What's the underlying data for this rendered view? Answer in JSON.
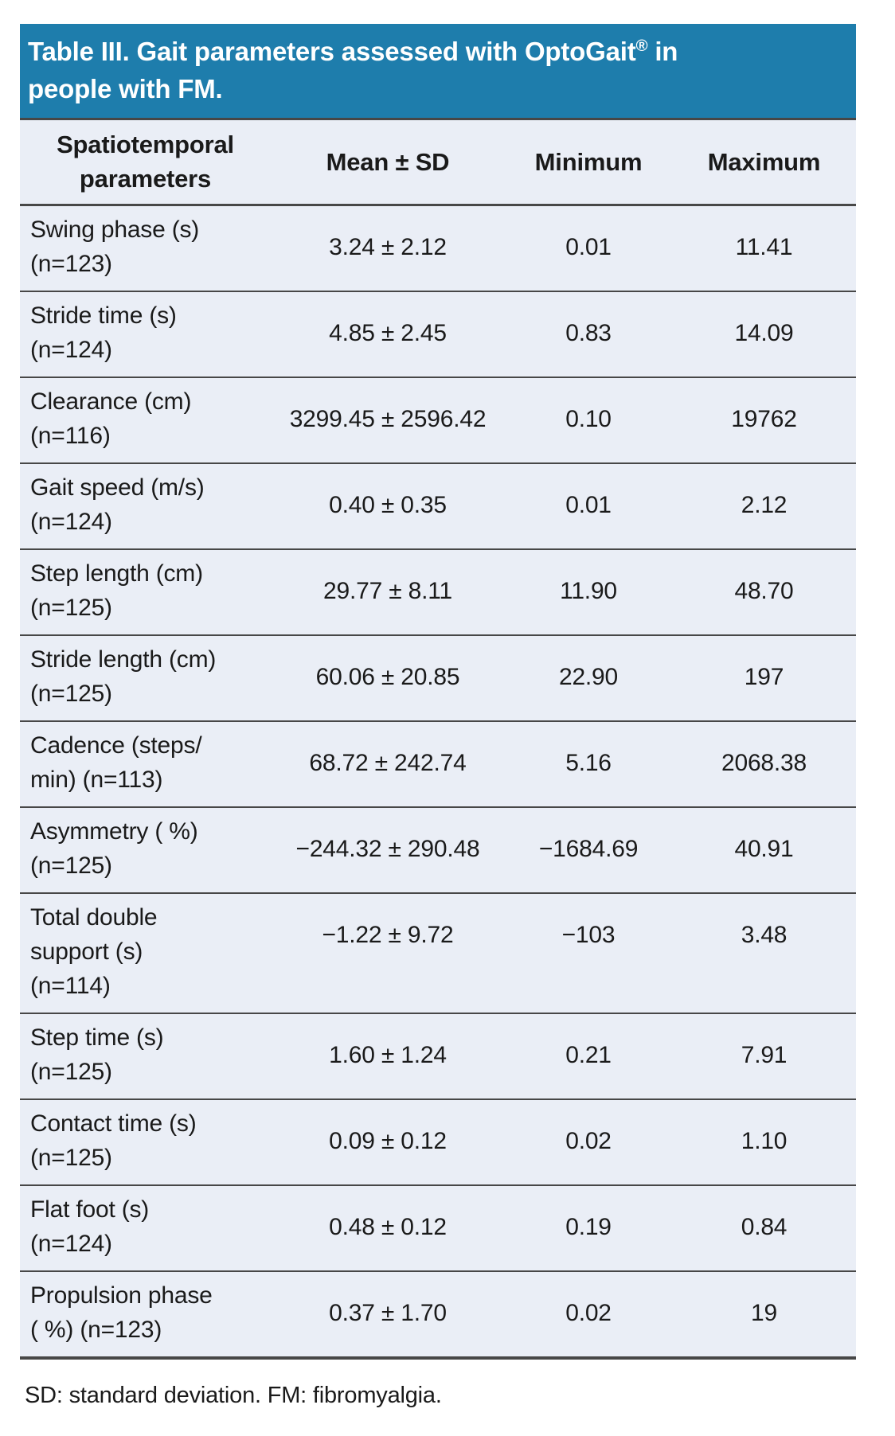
{
  "title": {
    "prefix": "Table III. Gait parameters assessed with OptoGait",
    "registered_mark": "®",
    "suffix": " in",
    "line2": "people with FM."
  },
  "table": {
    "headers": [
      "Spatiotemporal\nparameters",
      "Mean ± SD",
      "Minimum",
      "Maximum"
    ],
    "rows": [
      {
        "parameter": "Swing phase (s)\n(n=123)",
        "mean_sd": "3.24 ± 2.12",
        "minimum": "0.01",
        "maximum": "11.41"
      },
      {
        "parameter": "Stride time (s)\n(n=124)",
        "mean_sd": "4.85 ± 2.45",
        "minimum": "0.83",
        "maximum": "14.09"
      },
      {
        "parameter": "Clearance (cm)\n(n=116)",
        "mean_sd": "3299.45 ± 2596.42",
        "minimum": "0.10",
        "maximum": "19762"
      },
      {
        "parameter": "Gait speed (m/s)\n(n=124)",
        "mean_sd": "0.40 ± 0.35",
        "minimum": "0.01",
        "maximum": "2.12"
      },
      {
        "parameter": "Step length (cm)\n(n=125)",
        "mean_sd": "29.77 ± 8.11",
        "minimum": "11.90",
        "maximum": "48.70"
      },
      {
        "parameter": "Stride length (cm)\n(n=125)",
        "mean_sd": "60.06 ± 20.85",
        "minimum": "22.90",
        "maximum": "197"
      },
      {
        "parameter": "Cadence (steps/\nmin) (n=113)",
        "mean_sd": "68.72 ± 242.74",
        "minimum": "5.16",
        "maximum": "2068.38"
      },
      {
        "parameter": "Asymmetry ( %)\n(n=125)",
        "mean_sd": "−244.32 ± 290.48",
        "minimum": "−1684.69",
        "maximum": "40.91"
      },
      {
        "parameter": "Total double\nsupport (s)\n(n=114)",
        "mean_sd": "−1.22 ± 9.72",
        "minimum": "−103",
        "maximum": "3.48"
      },
      {
        "parameter": "Step time (s)\n(n=125)",
        "mean_sd": "1.60 ± 1.24",
        "minimum": "0.21",
        "maximum": "7.91"
      },
      {
        "parameter": "Contact time (s)\n(n=125)",
        "mean_sd": "0.09 ± 0.12",
        "minimum": "0.02",
        "maximum": "1.10"
      },
      {
        "parameter": "Flat foot (s)\n(n=124)",
        "mean_sd": "0.48 ± 0.12",
        "minimum": "0.19",
        "maximum": "0.84"
      },
      {
        "parameter": "Propulsion phase\n( %) (n=123)",
        "mean_sd": "0.37 ± 1.70",
        "minimum": "0.02",
        "maximum": "19"
      }
    ]
  },
  "footnote": "SD: standard deviation. FM: fibromyalgia.",
  "colors": {
    "banner_bg": "#1e7dac",
    "banner_text": "#ffffff",
    "table_bg": "#eaeef6",
    "rule": "#474747",
    "text": "#1a1a1a"
  }
}
